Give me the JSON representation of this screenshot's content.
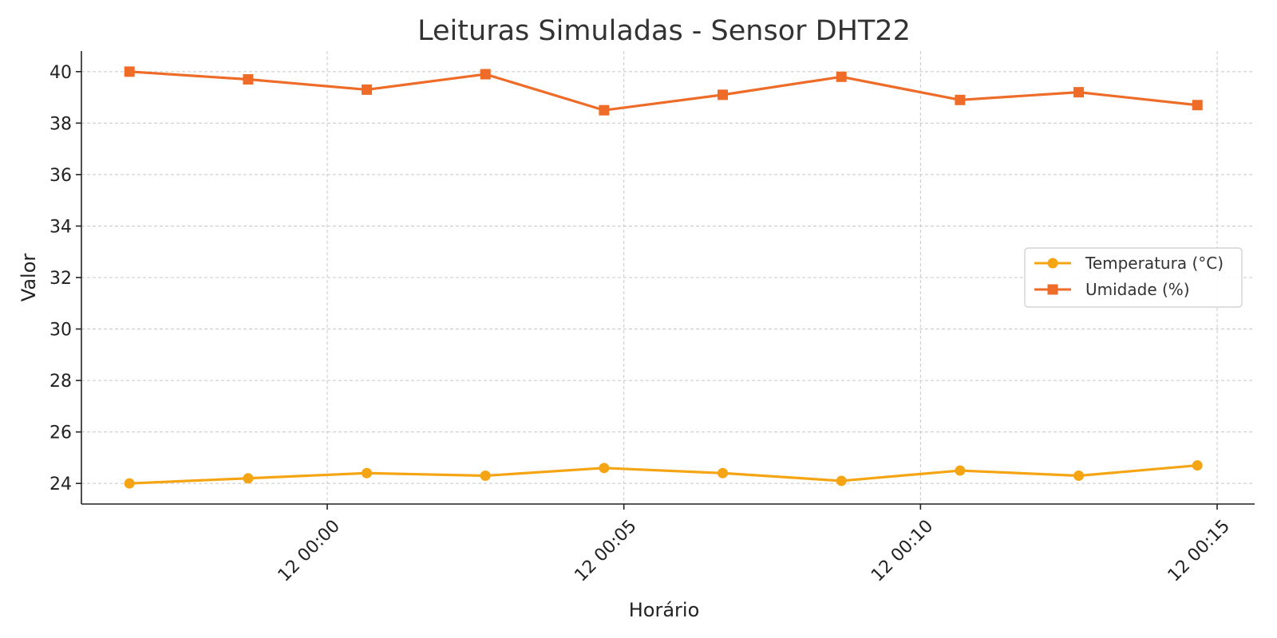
{
  "chart_data": {
    "type": "line",
    "title": "Leituras Simuladas - Sensor DHT22",
    "xlabel": "Horário",
    "ylabel": "Valor",
    "x": [
      "11 23:56:40",
      "11 23:58:40",
      "12 00:00:40",
      "12 00:02:40",
      "12 00:04:40",
      "12 00:06:40",
      "12 00:08:40",
      "12 00:10:40",
      "12 00:12:40",
      "12 00:14:40"
    ],
    "x_ticks": [
      "12 00:00",
      "12 00:05",
      "12 00:10",
      "12 00:15"
    ],
    "ylim": [
      23.2,
      40.8
    ],
    "y_ticks": [
      24,
      26,
      28,
      30,
      32,
      34,
      36,
      38,
      40
    ],
    "grid": true,
    "legend_position": "center-right",
    "series": [
      {
        "name": "Temperatura (°C)",
        "color": "#f5a514",
        "marker": "circle",
        "values": [
          24.0,
          24.2,
          24.4,
          24.3,
          24.6,
          24.4,
          24.1,
          24.5,
          24.3,
          24.7
        ]
      },
      {
        "name": "Umidade (%)",
        "color": "#ee6b28",
        "marker": "square",
        "values": [
          40.0,
          39.7,
          39.3,
          39.9,
          38.5,
          39.1,
          39.8,
          38.9,
          39.2,
          38.7
        ]
      }
    ]
  }
}
